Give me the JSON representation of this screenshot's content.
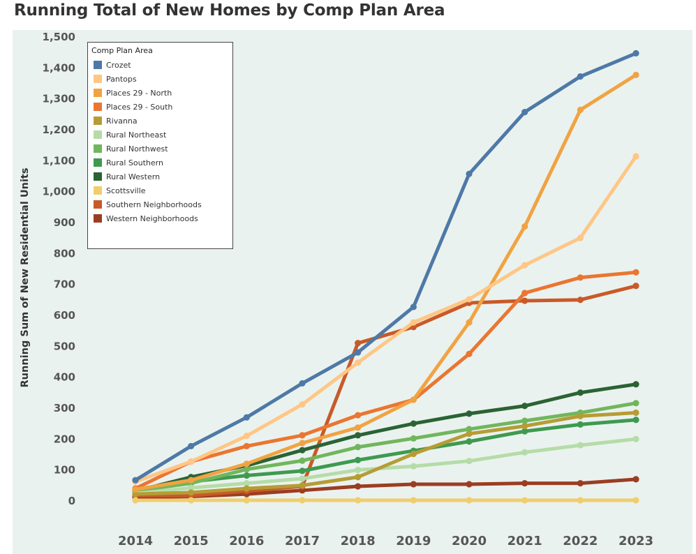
{
  "chart_data": {
    "type": "line",
    "title": "Running Total of New Homes by Comp Plan Area",
    "xlabel": "",
    "ylabel": "Running Sum of New Residential Units",
    "ylim": [
      0,
      1500
    ],
    "yticks": [
      0,
      100,
      200,
      300,
      400,
      500,
      600,
      700,
      800,
      900,
      1000,
      1100,
      1200,
      1300,
      1400,
      1500
    ],
    "ytick_labels": [
      "0",
      "100",
      "200",
      "300",
      "400",
      "500",
      "600",
      "700",
      "800",
      "900",
      "1,000",
      "1,100",
      "1,200",
      "1,300",
      "1,400",
      "1,500"
    ],
    "x": [
      "2014",
      "2015",
      "2016",
      "2017",
      "2018",
      "2019",
      "2020",
      "2021",
      "2022",
      "2023"
    ],
    "legend_title": "Comp Plan Area",
    "legend_position": "top-left",
    "grid": false,
    "series": [
      {
        "name": "Crozet",
        "color": "#4e79a7",
        "values": [
          65,
          175,
          268,
          378,
          478,
          625,
          1055,
          1255,
          1370,
          1445
        ]
      },
      {
        "name": "Pantops",
        "color": "#ffc685",
        "values": [
          60,
          125,
          208,
          310,
          445,
          575,
          650,
          760,
          848,
          1112
        ]
      },
      {
        "name": "Places 29 - North",
        "color": "#f1a342",
        "values": [
          35,
          65,
          118,
          185,
          235,
          325,
          575,
          885,
          1262,
          1375
        ]
      },
      {
        "name": "Places 29 - South",
        "color": "#ea7631",
        "values": [
          38,
          125,
          175,
          210,
          275,
          325,
          473,
          670,
          720,
          737
        ]
      },
      {
        "name": "Rivanna",
        "color": "#b69c35",
        "values": [
          20,
          25,
          38,
          48,
          75,
          150,
          215,
          240,
          272,
          283
        ]
      },
      {
        "name": "Rural Northeast",
        "color": "#b5dca8",
        "values": [
          22,
          40,
          55,
          70,
          98,
          110,
          127,
          155,
          178,
          198
        ]
      },
      {
        "name": "Rural Northwest",
        "color": "#71b65d",
        "values": [
          30,
          55,
          100,
          128,
          172,
          200,
          230,
          257,
          283,
          314
        ]
      },
      {
        "name": "Rural Southern",
        "color": "#3e9a4f",
        "values": [
          28,
          60,
          80,
          95,
          130,
          160,
          190,
          223,
          245,
          260
        ]
      },
      {
        "name": "Rural Western",
        "color": "#2b6334",
        "values": [
          30,
          75,
          112,
          162,
          210,
          248,
          280,
          305,
          348,
          375
        ]
      },
      {
        "name": "Scottsville",
        "color": "#f0ce6d",
        "values": [
          0,
          0,
          0,
          0,
          0,
          0,
          0,
          0,
          0,
          0
        ]
      },
      {
        "name": "Southern Neighborhoods",
        "color": "#c85a28",
        "values": [
          15,
          15,
          30,
          45,
          508,
          560,
          638,
          645,
          648,
          693
        ]
      },
      {
        "name": "Western Neighborhoods",
        "color": "#9b3d22",
        "values": [
          10,
          12,
          20,
          32,
          45,
          52,
          52,
          55,
          55,
          68
        ]
      }
    ]
  }
}
